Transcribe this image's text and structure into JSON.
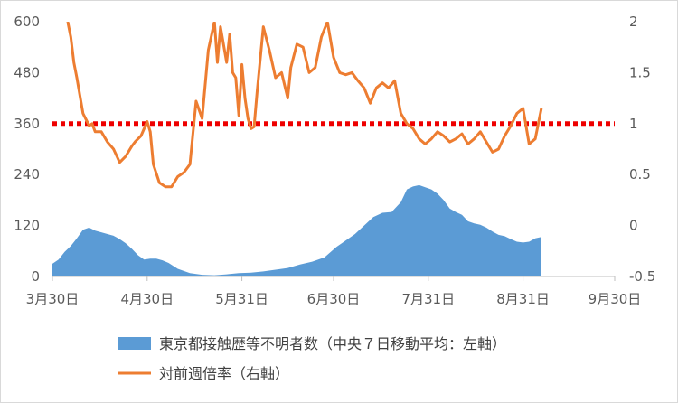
{
  "chart_data": {
    "type": "line",
    "title": "",
    "xlabel": "",
    "ylabel": "",
    "x_ticks": [
      "3月30日",
      "4月30日",
      "5月31日",
      "6月30日",
      "7月31日",
      "8月31日",
      "9月30日"
    ],
    "y_left": {
      "range": [
        0,
        600
      ],
      "ticks": [
        "0",
        "120",
        "240",
        "360",
        "480",
        "600"
      ]
    },
    "y_right": {
      "range": [
        -0.5,
        2
      ],
      "ticks": [
        "-0.5",
        "0",
        "0.5",
        "1",
        "1.5",
        "2"
      ]
    },
    "grid": false,
    "legend_position": "bottom",
    "threshold_line": {
      "axis": "right",
      "value": 1,
      "color": "#ee0000",
      "style": "dotted"
    },
    "series": [
      {
        "name": "東京都接触歴等不明者数（中央７日移動平均：左軸）",
        "kind": "area",
        "axis": "left",
        "color": "#5b9bd5",
        "x": [
          "2020-03-30",
          "2020-04-01",
          "2020-04-03",
          "2020-04-05",
          "2020-04-07",
          "2020-04-09",
          "2020-04-11",
          "2020-04-13",
          "2020-04-15",
          "2020-04-17",
          "2020-04-19",
          "2020-04-21",
          "2020-04-23",
          "2020-04-25",
          "2020-04-27",
          "2020-04-29",
          "2020-05-01",
          "2020-05-03",
          "2020-05-05",
          "2020-05-07",
          "2020-05-10",
          "2020-05-14",
          "2020-05-18",
          "2020-05-22",
          "2020-05-26",
          "2020-05-30",
          "2020-06-03",
          "2020-06-07",
          "2020-06-11",
          "2020-06-15",
          "2020-06-19",
          "2020-06-23",
          "2020-06-27",
          "2020-07-01",
          "2020-07-04",
          "2020-07-07",
          "2020-07-10",
          "2020-07-13",
          "2020-07-16",
          "2020-07-19",
          "2020-07-22",
          "2020-07-24",
          "2020-07-26",
          "2020-07-28",
          "2020-07-30",
          "2020-08-01",
          "2020-08-03",
          "2020-08-05",
          "2020-08-07",
          "2020-08-09",
          "2020-08-11",
          "2020-08-13",
          "2020-08-15",
          "2020-08-17",
          "2020-08-19",
          "2020-08-21",
          "2020-08-23",
          "2020-08-25",
          "2020-08-27",
          "2020-08-29",
          "2020-08-31",
          "2020-09-02",
          "2020-09-04",
          "2020-09-06"
        ],
        "values": [
          30,
          40,
          58,
          72,
          90,
          110,
          115,
          108,
          104,
          100,
          96,
          88,
          78,
          65,
          50,
          40,
          42,
          42,
          38,
          32,
          18,
          8,
          4,
          3,
          5,
          8,
          9,
          12,
          16,
          20,
          28,
          35,
          45,
          70,
          85,
          100,
          120,
          140,
          150,
          152,
          175,
          205,
          212,
          215,
          210,
          205,
          195,
          180,
          160,
          152,
          145,
          130,
          125,
          122,
          115,
          106,
          98,
          95,
          88,
          82,
          80,
          82,
          90,
          93
        ]
      },
      {
        "name": "対前週倍率（右軸）",
        "kind": "line",
        "axis": "right",
        "color": "#ed7d31",
        "x": [
          "2020-04-04",
          "2020-04-05",
          "2020-04-06",
          "2020-04-07",
          "2020-04-09",
          "2020-04-11",
          "2020-04-12",
          "2020-04-13",
          "2020-04-15",
          "2020-04-17",
          "2020-04-19",
          "2020-04-21",
          "2020-04-23",
          "2020-04-25",
          "2020-04-26",
          "2020-04-28",
          "2020-04-30",
          "2020-05-01",
          "2020-05-02",
          "2020-05-04",
          "2020-05-06",
          "2020-05-08",
          "2020-05-10",
          "2020-05-12",
          "2020-05-14",
          "2020-05-16",
          "2020-05-18",
          "2020-05-20",
          "2020-05-22",
          "2020-05-23",
          "2020-05-24",
          "2020-05-26",
          "2020-05-27",
          "2020-05-28",
          "2020-05-29",
          "2020-05-30",
          "2020-05-31",
          "2020-06-01",
          "2020-06-02",
          "2020-06-03",
          "2020-06-04",
          "2020-06-05",
          "2020-06-07",
          "2020-06-09",
          "2020-06-11",
          "2020-06-13",
          "2020-06-15",
          "2020-06-16",
          "2020-06-18",
          "2020-06-20",
          "2020-06-22",
          "2020-06-24",
          "2020-06-26",
          "2020-06-28",
          "2020-06-30",
          "2020-07-02",
          "2020-07-04",
          "2020-07-06",
          "2020-07-08",
          "2020-07-10",
          "2020-07-12",
          "2020-07-14",
          "2020-07-16",
          "2020-07-18",
          "2020-07-20",
          "2020-07-22",
          "2020-07-24",
          "2020-07-26",
          "2020-07-28",
          "2020-07-30",
          "2020-08-01",
          "2020-08-03",
          "2020-08-05",
          "2020-08-07",
          "2020-08-09",
          "2020-08-11",
          "2020-08-13",
          "2020-08-15",
          "2020-08-17",
          "2020-08-19",
          "2020-08-21",
          "2020-08-23",
          "2020-08-25",
          "2020-08-27",
          "2020-08-29",
          "2020-08-31",
          "2020-09-02",
          "2020-09-04",
          "2020-09-06"
        ],
        "values": [
          2.0,
          1.85,
          1.6,
          1.45,
          1.1,
          0.98,
          1.0,
          0.92,
          0.92,
          0.82,
          0.75,
          0.62,
          0.68,
          0.78,
          0.82,
          0.88,
          1.02,
          0.92,
          0.6,
          0.42,
          0.38,
          0.38,
          0.48,
          0.52,
          0.6,
          1.22,
          1.05,
          1.72,
          2.0,
          1.6,
          1.95,
          1.6,
          1.88,
          1.5,
          1.45,
          1.08,
          1.58,
          1.25,
          1.05,
          0.95,
          0.97,
          1.32,
          1.95,
          1.72,
          1.45,
          1.5,
          1.25,
          1.55,
          1.78,
          1.75,
          1.5,
          1.55,
          1.85,
          2.0,
          1.65,
          1.5,
          1.48,
          1.5,
          1.42,
          1.35,
          1.2,
          1.35,
          1.4,
          1.35,
          1.42,
          1.1,
          1.0,
          0.95,
          0.85,
          0.8,
          0.85,
          0.92,
          0.88,
          0.82,
          0.85,
          0.9,
          0.8,
          0.85,
          0.92,
          0.82,
          0.72,
          0.75,
          0.88,
          0.98,
          1.1,
          1.15,
          0.8,
          0.85,
          1.15
        ]
      }
    ]
  }
}
